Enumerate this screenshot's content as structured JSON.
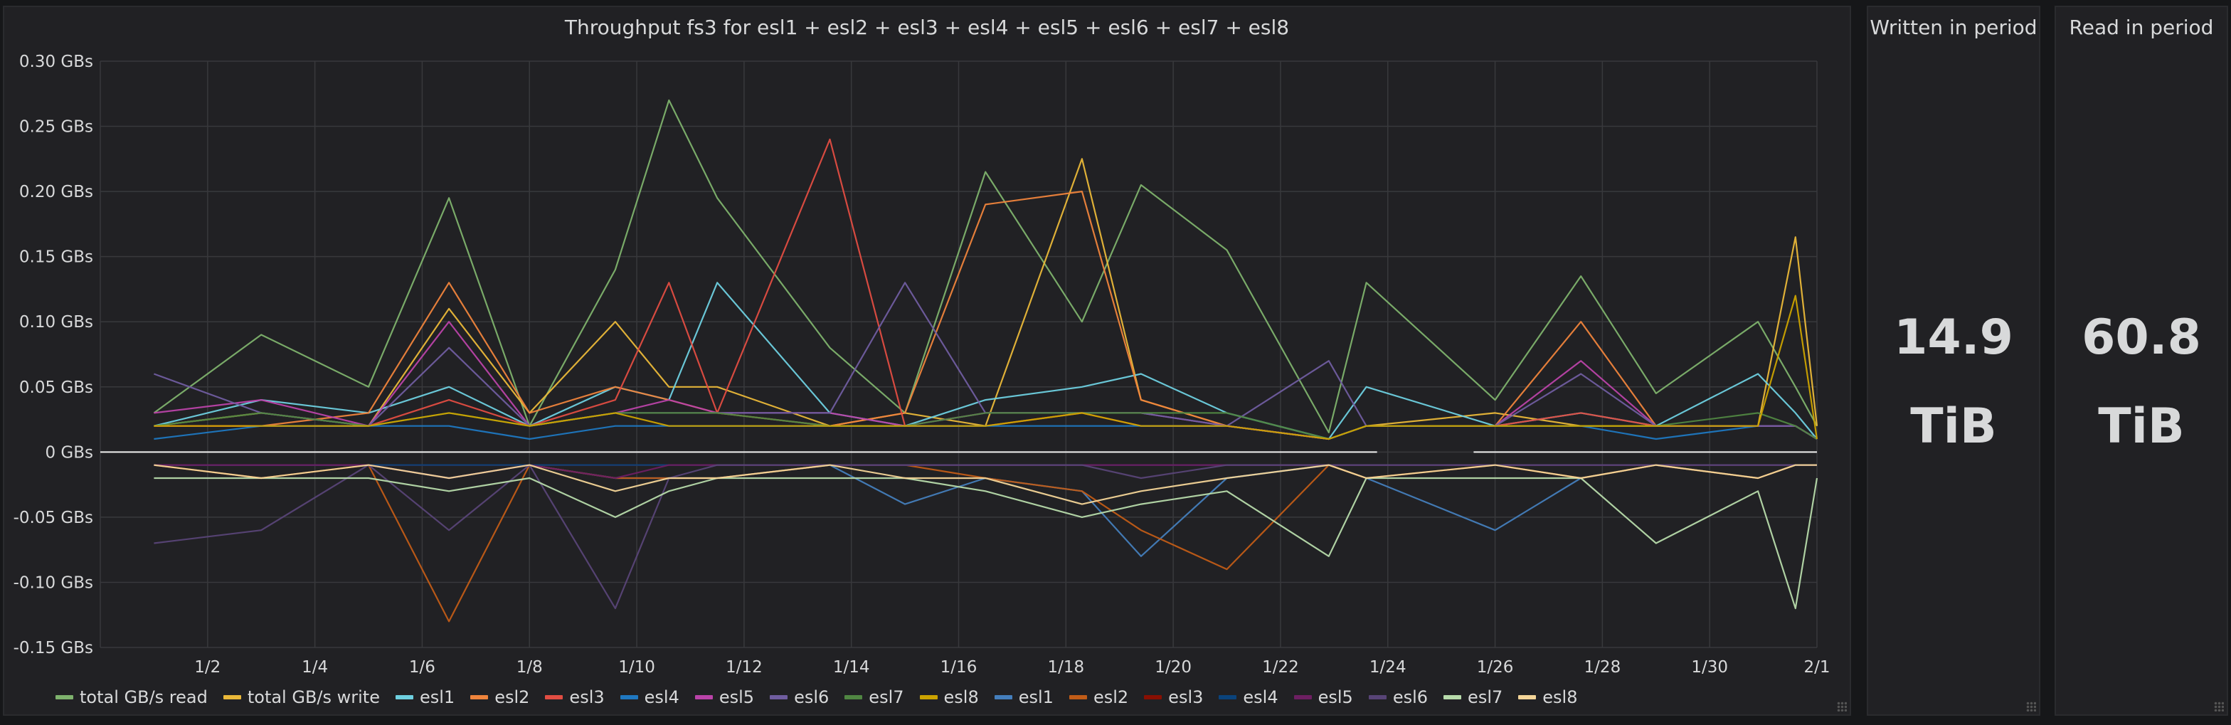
{
  "panels": {
    "written": {
      "title": "Written in period",
      "value": "14.9",
      "unit": "TiB"
    },
    "read": {
      "title": "Read in period",
      "value": "60.8",
      "unit": "TiB"
    }
  },
  "chart_data": {
    "type": "line",
    "title": "Throughput fs3 for esl1 + esl2 + esl3 + esl4 + esl5 + esl6 + esl7 + esl8",
    "xlabel": "",
    "ylabel": "",
    "x_ticks": [
      "1/2",
      "1/4",
      "1/6",
      "1/8",
      "1/10",
      "1/12",
      "1/14",
      "1/16",
      "1/18",
      "1/20",
      "1/22",
      "1/24",
      "1/26",
      "1/28",
      "1/30",
      "2/1"
    ],
    "y_ticks": [
      "0.30 GBs",
      "0.25 GBs",
      "0.20 GBs",
      "0.15 GBs",
      "0.10 GBs",
      "0.05 GBs",
      "0 GBs",
      "-0.05 GBs",
      "-0.10 GBs",
      "-0.15 GBs"
    ],
    "ylim": [
      -0.15,
      0.3
    ],
    "xlim": [
      "12/31",
      "2/1"
    ],
    "grid": true,
    "legend_position": "bottom",
    "data_gap": [
      "1/23.8",
      "1/25.6"
    ],
    "x": [
      "1/1",
      "1/3",
      "1/5",
      "1/6.5",
      "1/8",
      "1/9.6",
      "1/10.6",
      "1/11.5",
      "1/13.6",
      "1/15",
      "1/16.5",
      "1/18.3",
      "1/19.4",
      "1/21",
      "1/22.9",
      "1/23.6",
      "1/26",
      "1/27.6",
      "1/29",
      "1/30.9",
      "1/31.6",
      "2/1"
    ],
    "series": [
      {
        "name": "total GB/s read",
        "color": "#7eb26d",
        "values": [
          0.03,
          0.09,
          0.05,
          0.195,
          0.02,
          0.14,
          0.27,
          0.195,
          0.08,
          0.03,
          0.215,
          0.1,
          0.205,
          0.155,
          0.015,
          0.13,
          0.04,
          0.135,
          0.045,
          0.1,
          0.05,
          0.02
        ]
      },
      {
        "name": "total GB/s write",
        "color": "#eab839",
        "values": [
          0.02,
          0.03,
          0.02,
          0.11,
          0.03,
          0.1,
          0.05,
          0.05,
          0.02,
          0.03,
          0.02,
          0.225,
          0.04,
          0.02,
          0.01,
          0.02,
          0.03,
          0.02,
          0.02,
          0.02,
          0.165,
          0.02
        ]
      },
      {
        "name": "esl1",
        "color": "#6ed0e0",
        "values": [
          0.02,
          0.04,
          0.03,
          0.05,
          0.02,
          0.05,
          0.04,
          0.13,
          0.03,
          0.02,
          0.04,
          0.05,
          0.06,
          0.03,
          0.01,
          0.05,
          0.02,
          0.03,
          0.02,
          0.06,
          0.03,
          0.01
        ]
      },
      {
        "name": "esl2",
        "color": "#ef843c",
        "values": [
          0.02,
          0.02,
          0.03,
          0.13,
          0.03,
          0.05,
          0.04,
          0.03,
          0.02,
          0.03,
          0.19,
          0.2,
          0.04,
          0.02,
          0.01,
          0.02,
          0.02,
          0.1,
          0.02,
          0.02,
          0.02,
          0.01
        ]
      },
      {
        "name": "esl3",
        "color": "#e24d42",
        "values": [
          0.02,
          0.02,
          0.02,
          0.04,
          0.02,
          0.04,
          0.13,
          0.03,
          0.24,
          0.02,
          0.02,
          0.03,
          0.02,
          0.02,
          0.01,
          0.02,
          0.02,
          0.03,
          0.02,
          0.02,
          0.02,
          0.01
        ]
      },
      {
        "name": "esl4",
        "color": "#1f78c1",
        "values": [
          0.01,
          0.02,
          0.02,
          0.02,
          0.01,
          0.02,
          0.02,
          0.02,
          0.02,
          0.02,
          0.02,
          0.02,
          0.02,
          0.02,
          0.01,
          0.02,
          0.02,
          0.02,
          0.01,
          0.02,
          0.02,
          0.01
        ]
      },
      {
        "name": "esl5",
        "color": "#ba43a9",
        "values": [
          0.03,
          0.04,
          0.02,
          0.1,
          0.02,
          0.03,
          0.04,
          0.03,
          0.03,
          0.02,
          0.03,
          0.03,
          0.03,
          0.02,
          0.01,
          0.02,
          0.02,
          0.07,
          0.02,
          0.02,
          0.02,
          0.01
        ]
      },
      {
        "name": "esl6",
        "color": "#705da0",
        "values": [
          0.06,
          0.03,
          0.02,
          0.08,
          0.02,
          0.03,
          0.03,
          0.03,
          0.03,
          0.13,
          0.03,
          0.03,
          0.03,
          0.02,
          0.07,
          0.02,
          0.02,
          0.06,
          0.02,
          0.02,
          0.02,
          0.01
        ]
      },
      {
        "name": "esl7",
        "color": "#508642",
        "values": [
          0.02,
          0.03,
          0.02,
          0.03,
          0.02,
          0.03,
          0.03,
          0.03,
          0.02,
          0.02,
          0.03,
          0.03,
          0.03,
          0.03,
          0.01,
          0.02,
          0.02,
          0.02,
          0.02,
          0.03,
          0.02,
          0.01
        ]
      },
      {
        "name": "esl8",
        "color": "#cca300",
        "values": [
          0.02,
          0.02,
          0.02,
          0.03,
          0.02,
          0.03,
          0.02,
          0.02,
          0.02,
          0.02,
          0.02,
          0.03,
          0.02,
          0.02,
          0.01,
          0.02,
          0.02,
          0.02,
          0.02,
          0.02,
          0.12,
          0.01
        ]
      },
      {
        "name": "esl1",
        "color": "#447ebc",
        "values": [
          -0.01,
          -0.01,
          -0.01,
          -0.02,
          -0.01,
          -0.02,
          -0.02,
          -0.02,
          -0.01,
          -0.04,
          -0.02,
          -0.03,
          -0.08,
          -0.02,
          -0.01,
          -0.02,
          -0.06,
          -0.02,
          -0.01,
          -0.02,
          -0.01,
          -0.01
        ]
      },
      {
        "name": "esl2",
        "color": "#c15c17",
        "values": [
          -0.01,
          -0.02,
          -0.01,
          -0.13,
          -0.01,
          -0.02,
          -0.02,
          -0.02,
          -0.01,
          -0.01,
          -0.02,
          -0.03,
          -0.06,
          -0.09,
          -0.01,
          -0.02,
          -0.01,
          -0.02,
          -0.01,
          -0.02,
          -0.01,
          -0.01
        ]
      },
      {
        "name": "esl3",
        "color": "#890f02",
        "values": [
          -0.01,
          -0.01,
          -0.01,
          -0.01,
          -0.01,
          -0.01,
          -0.01,
          -0.01,
          -0.01,
          -0.01,
          -0.01,
          -0.01,
          -0.01,
          -0.01,
          -0.01,
          -0.01,
          -0.01,
          -0.01,
          -0.01,
          -0.01,
          -0.01,
          -0.01
        ]
      },
      {
        "name": "esl4",
        "color": "#0a437c",
        "values": [
          -0.01,
          -0.01,
          -0.01,
          -0.01,
          -0.01,
          -0.01,
          -0.01,
          -0.01,
          -0.01,
          -0.01,
          -0.01,
          -0.01,
          -0.01,
          -0.01,
          -0.01,
          -0.01,
          -0.01,
          -0.01,
          -0.01,
          -0.01,
          -0.01,
          -0.01
        ]
      },
      {
        "name": "esl5",
        "color": "#6d1f62",
        "values": [
          -0.01,
          -0.01,
          -0.01,
          -0.02,
          -0.01,
          -0.02,
          -0.01,
          -0.01,
          -0.01,
          -0.01,
          -0.01,
          -0.01,
          -0.01,
          -0.01,
          -0.01,
          -0.01,
          -0.01,
          -0.01,
          -0.01,
          -0.01,
          -0.01,
          -0.01
        ]
      },
      {
        "name": "esl6",
        "color": "#584477",
        "values": [
          -0.07,
          -0.06,
          -0.01,
          -0.06,
          -0.01,
          -0.12,
          -0.02,
          -0.01,
          -0.01,
          -0.01,
          -0.01,
          -0.01,
          -0.02,
          -0.01,
          -0.01,
          -0.01,
          -0.01,
          -0.01,
          -0.01,
          -0.01,
          -0.01,
          -0.01
        ]
      },
      {
        "name": "esl7",
        "color": "#b7dbab",
        "values": [
          -0.02,
          -0.02,
          -0.02,
          -0.03,
          -0.02,
          -0.05,
          -0.03,
          -0.02,
          -0.02,
          -0.02,
          -0.03,
          -0.05,
          -0.04,
          -0.03,
          -0.08,
          -0.02,
          -0.02,
          -0.02,
          -0.07,
          -0.03,
          -0.12,
          -0.02
        ]
      },
      {
        "name": "esl8",
        "color": "#f4d598",
        "values": [
          -0.01,
          -0.02,
          -0.01,
          -0.02,
          -0.01,
          -0.03,
          -0.02,
          -0.02,
          -0.01,
          -0.02,
          -0.02,
          -0.04,
          -0.03,
          -0.02,
          -0.01,
          -0.02,
          -0.01,
          -0.02,
          -0.01,
          -0.02,
          -0.01,
          -0.01
        ]
      }
    ]
  }
}
